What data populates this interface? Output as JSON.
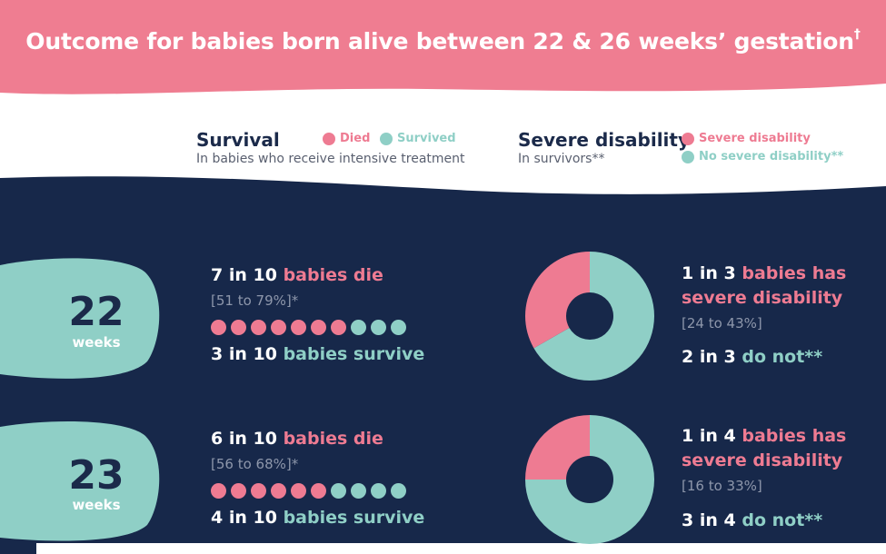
{
  "title": "Outcome for babies born alive between 22 & 26 weeks’ gestation",
  "title_mark": "†",
  "colors": {
    "pink": "#ee7b92",
    "teal": "#8fcfc6",
    "navy": "#1b2a4a",
    "header_bg": "#ef7d91",
    "white": "#ffffff"
  },
  "legend": {
    "survival": {
      "heading": "Survival",
      "sub": "In babies who receive intensive treatment",
      "items": [
        {
          "label": "Died",
          "color": "#ee7b92"
        },
        {
          "label": "Survived",
          "color": "#8fcfc6"
        }
      ]
    },
    "disability": {
      "heading": "Severe disability",
      "sub": "In survivors**",
      "items": [
        {
          "label": "Severe disability",
          "color": "#ee7b92"
        },
        {
          "label": "No severe disability**",
          "color": "#8fcfc6"
        }
      ]
    }
  },
  "rows": [
    {
      "week": "22",
      "week_label": "weeks",
      "die_count": "7 in 10",
      "die_text": "babies die",
      "die_ci": "[51 to 79%]*",
      "died": 7,
      "total": 10,
      "survive_count": "3 in 10",
      "survive_text": "babies survive",
      "disability_fraction": 0.333,
      "dis_count": "1 in 3",
      "dis_text_1": "babies has",
      "dis_text_2": "severe disability",
      "dis_ci": "[24 to 43%]",
      "not_count": "2 in 3",
      "not_text": "do not**"
    },
    {
      "week": "23",
      "week_label": "weeks",
      "die_count": "6 in 10",
      "die_text": "babies die",
      "die_ci": "[56 to 68%]*",
      "died": 6,
      "total": 10,
      "survive_count": "4 in 10",
      "survive_text": "babies survive",
      "disability_fraction": 0.25,
      "dis_count": "1 in 4",
      "dis_text_1": "babies has",
      "dis_text_2": "severe disability",
      "dis_ci": "[16 to 33%]",
      "not_count": "3 in 4",
      "not_text": "do not**"
    }
  ]
}
